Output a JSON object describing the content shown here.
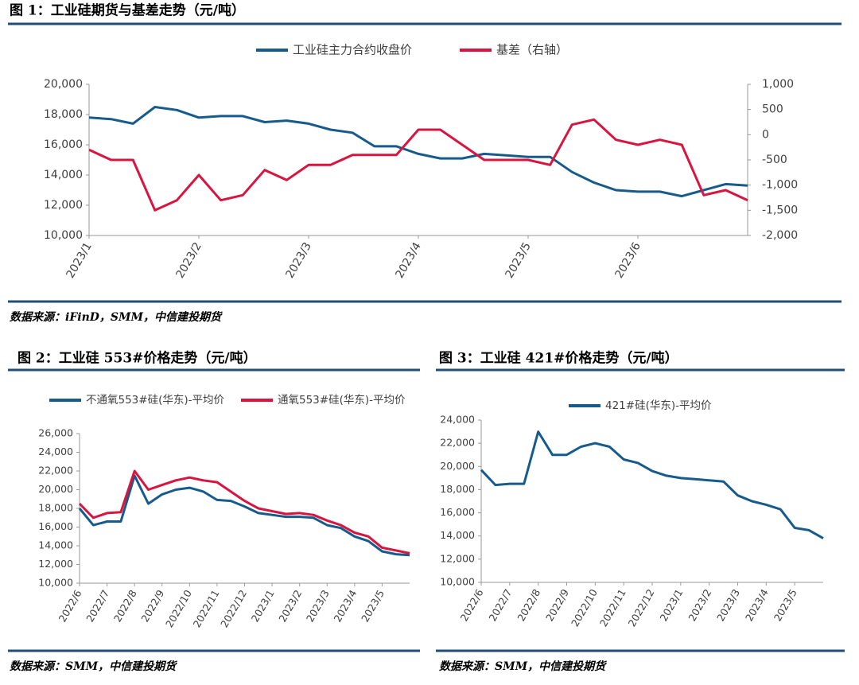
{
  "chart_data": [
    {
      "type": "line",
      "title": "图 1：工业硅期货与基差走势（元/吨）",
      "source": "数据来源：iFinD，SMM，中信建投期货",
      "categories": [
        "2023/1",
        null,
        null,
        null,
        null,
        "2023/2",
        null,
        null,
        null,
        null,
        "2023/3",
        null,
        null,
        null,
        null,
        "2023/4",
        null,
        null,
        null,
        null,
        "2023/5",
        null,
        null,
        null,
        null,
        "2023/6",
        null,
        null,
        null,
        null,
        null
      ],
      "series": [
        {
          "name": "工业硅主力合约收盘价",
          "color": "#165b8c",
          "values": [
            17800,
            17700,
            17400,
            18500,
            18300,
            17800,
            17900,
            17900,
            17500,
            17600,
            17400,
            17000,
            16800,
            15900,
            15900,
            15400,
            15100,
            15100,
            15400,
            15300,
            15200,
            15200,
            14200,
            13500,
            13000,
            12900,
            12900,
            12600,
            13000,
            13400,
            13300
          ]
        },
        {
          "name": "基差（右轴）",
          "color": "#d9143f",
          "axis": "y2",
          "values": [
            -300,
            -500,
            -500,
            -1500,
            -1300,
            -800,
            -1300,
            -1200,
            -700,
            -900,
            -600,
            -600,
            -400,
            -400,
            -400,
            100,
            100,
            -200,
            -500,
            -500,
            -500,
            -600,
            200,
            300,
            -100,
            -200,
            -100,
            -200,
            -1200,
            -1100,
            -1300
          ]
        }
      ],
      "ylim": [
        10000,
        20000
      ],
      "yticks": [
        {
          "value": 10000,
          "label": "10,000"
        },
        {
          "value": 12000,
          "label": "12,000"
        },
        {
          "value": 14000,
          "label": "14,000"
        },
        {
          "value": 16000,
          "label": "16,000"
        },
        {
          "value": 18000,
          "label": "18,000"
        },
        {
          "value": 20000,
          "label": "20,000"
        }
      ],
      "y2lim": [
        -2000,
        1000
      ],
      "y2ticks": [
        {
          "value": -2000,
          "label": "-2,000"
        },
        {
          "value": -1500,
          "label": "-1,500"
        },
        {
          "value": -1000,
          "label": "-1,000"
        },
        -500,
        0,
        500,
        {
          "value": 1000,
          "label": "1,000"
        }
      ]
    },
    {
      "type": "line",
      "title": "图 2：工业硅 553#价格走势（元/吨）",
      "source": "数据来源：SMM，中信建投期货",
      "categories": [
        "2022/6",
        null,
        "2022/7",
        null,
        "2022/8",
        null,
        "2022/9",
        null,
        "2022/10",
        null,
        "2022/11",
        null,
        "2022/12",
        null,
        "2023/1",
        null,
        "2023/2",
        null,
        "2023/3",
        null,
        "2023/4",
        null,
        "2023/5",
        null,
        null
      ],
      "series": [
        {
          "name": "不通氧553#硅(华东)-平均价",
          "color": "#165b8c",
          "values": [
            18000,
            16200,
            16600,
            16600,
            21500,
            18500,
            19500,
            20000,
            20200,
            19800,
            18900,
            18800,
            18200,
            17500,
            17300,
            17100,
            17100,
            17000,
            16200,
            15900,
            15000,
            14500,
            13400,
            13100,
            13000
          ]
        },
        {
          "name": "通氧553#硅(华东)-平均价",
          "color": "#d9143f",
          "values": [
            18500,
            17000,
            17500,
            17600,
            22000,
            20000,
            20500,
            21000,
            21300,
            21000,
            20800,
            19800,
            18800,
            18000,
            17700,
            17400,
            17500,
            17300,
            16700,
            16200,
            15400,
            15000,
            13800,
            13500,
            13200
          ]
        }
      ],
      "ylim": [
        10000,
        26000
      ],
      "yticks": [
        {
          "value": 10000,
          "label": "10,000"
        },
        {
          "value": 12000,
          "label": "12,000"
        },
        {
          "value": 14000,
          "label": "14,000"
        },
        {
          "value": 16000,
          "label": "16,000"
        },
        {
          "value": 18000,
          "label": "18,000"
        },
        {
          "value": 20000,
          "label": "20,000"
        },
        {
          "value": 22000,
          "label": "22,000"
        },
        {
          "value": 24000,
          "label": "24,000"
        },
        {
          "value": 26000,
          "label": "26,000"
        }
      ]
    },
    {
      "type": "line",
      "title": "图 3：工业硅 421#价格走势（元/吨）",
      "source": "数据来源：SMM，中信建投期货",
      "categories": [
        "2022/6",
        null,
        "2022/7",
        null,
        "2022/8",
        null,
        "2022/9",
        null,
        "2022/10",
        null,
        "2022/11",
        null,
        "2022/12",
        null,
        "2023/1",
        null,
        "2023/2",
        null,
        "2023/3",
        null,
        "2023/4",
        null,
        "2023/5",
        null,
        null
      ],
      "series": [
        {
          "name": "421#硅(华东)-平均价",
          "color": "#165b8c",
          "values": [
            19700,
            18400,
            18500,
            18500,
            23000,
            21000,
            21000,
            21700,
            22000,
            21700,
            20600,
            20300,
            19600,
            19200,
            19000,
            18900,
            18800,
            18700,
            17500,
            17000,
            16700,
            16300,
            14700,
            14500,
            13800
          ]
        }
      ],
      "ylim": [
        10000,
        24000
      ],
      "yticks": [
        {
          "value": 10000,
          "label": "10,000"
        },
        {
          "value": 12000,
          "label": "12,000"
        },
        {
          "value": 14000,
          "label": "14,000"
        },
        {
          "value": 16000,
          "label": "16,000"
        },
        {
          "value": 18000,
          "label": "18,000"
        },
        {
          "value": 20000,
          "label": "20,000"
        },
        {
          "value": 22000,
          "label": "22,000"
        },
        {
          "value": 24000,
          "label": "24,000"
        }
      ]
    }
  ]
}
